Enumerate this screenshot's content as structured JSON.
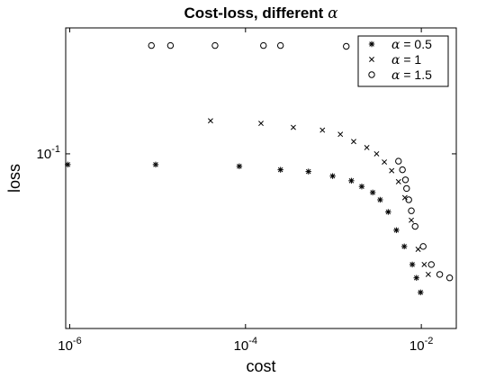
{
  "chart_data": {
    "type": "scatter",
    "title": "Cost-loss, different",
    "title_symbol": "α",
    "xlabel": "cost",
    "ylabel": "loss",
    "xscale": "log",
    "yscale": "log",
    "xlim": [
      9e-07,
      0.025
    ],
    "ylim": [
      0.0335,
      0.22
    ],
    "x_tick_values": [
      1e-06,
      0.0001,
      0.01
    ],
    "x_tick_labels": [
      {
        "base": "10",
        "exp": "-6"
      },
      {
        "base": "10",
        "exp": "-4"
      },
      {
        "base": "10",
        "exp": "-2"
      }
    ],
    "y_tick_values": [
      0.1
    ],
    "y_tick_labels": [
      {
        "base": "10",
        "exp": "-1"
      }
    ],
    "legend_position": "top-right",
    "series": [
      {
        "name": "α = 0.5",
        "marker": "asterisk",
        "x": [
          9.5e-07,
          9.5e-06,
          8.5e-05,
          0.00025,
          0.00052,
          0.00098,
          0.0016,
          0.0021,
          0.0028,
          0.0034,
          0.0042,
          0.0052,
          0.0064,
          0.0079,
          0.0088,
          0.0098
        ],
        "y": [
          0.0935,
          0.0935,
          0.0925,
          0.0905,
          0.0895,
          0.087,
          0.0845,
          0.0815,
          0.0785,
          0.075,
          0.0695,
          0.062,
          0.056,
          0.05,
          0.046,
          0.042
        ]
      },
      {
        "name": "α = 1",
        "marker": "x",
        "x": [
          4e-05,
          0.00015,
          0.00035,
          0.00075,
          0.0012,
          0.0017,
          0.0024,
          0.0031,
          0.0038,
          0.0046,
          0.0055,
          0.0065,
          0.0077,
          0.0092,
          0.0108,
          0.012
        ],
        "y": [
          0.123,
          0.121,
          0.118,
          0.116,
          0.113,
          0.108,
          0.104,
          0.1,
          0.095,
          0.09,
          0.084,
          0.076,
          0.066,
          0.055,
          0.05,
          0.047
        ]
      },
      {
        "name": "α = 1.5",
        "marker": "circle",
        "x": [
          8.5e-06,
          1.4e-05,
          4.5e-05,
          0.00016,
          0.00025,
          0.0014,
          0.0055,
          0.0061,
          0.0066,
          0.0068,
          0.0072,
          0.0077,
          0.0085,
          0.0105,
          0.013,
          0.0162,
          0.021
        ],
        "y": [
          0.197,
          0.197,
          0.197,
          0.197,
          0.197,
          0.196,
          0.0955,
          0.0905,
          0.085,
          0.0805,
          0.075,
          0.07,
          0.0635,
          0.056,
          0.05,
          0.047,
          0.046
        ]
      }
    ]
  }
}
